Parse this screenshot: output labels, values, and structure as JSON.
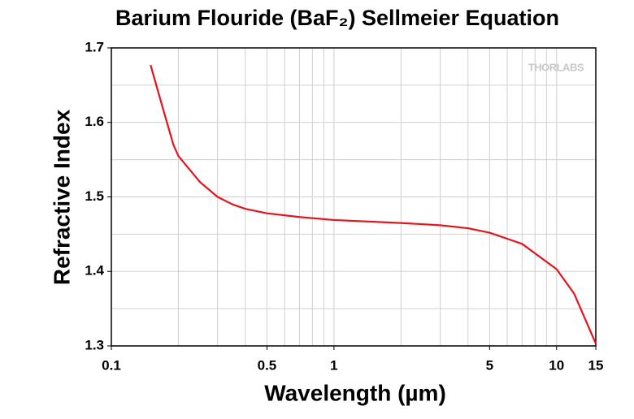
{
  "chart_data": {
    "type": "line",
    "title": "Barium Flouride (BaF₂) Sellmeier Equation",
    "x_label": "Wavelength (µm)",
    "y_label": "Refractive Index",
    "watermark": "THORLABS",
    "x": [
      0.15,
      0.17,
      0.19,
      0.2,
      0.25,
      0.3,
      0.35,
      0.4,
      0.5,
      0.7,
      1,
      2,
      3,
      4,
      5,
      7,
      10,
      12,
      15
    ],
    "series": [
      {
        "name": "BaF2",
        "color": "#e3141c",
        "values": [
          1.677,
          1.62,
          1.57,
          1.555,
          1.52,
          1.5,
          1.49,
          1.484,
          1.478,
          1.473,
          1.469,
          1.465,
          1.462,
          1.458,
          1.452,
          1.437,
          1.403,
          1.37,
          1.303
        ]
      }
    ],
    "xscale": "log",
    "xlim": [
      0.1,
      15
    ],
    "xticks": [
      0.1,
      0.5,
      1,
      5,
      10,
      15
    ],
    "xminor": [
      0.2,
      0.3,
      0.4,
      0.6,
      0.7,
      0.8,
      0.9,
      2,
      3,
      4,
      6,
      7,
      8,
      9
    ],
    "ylim": [
      1.3,
      1.7
    ],
    "yticks": [
      1.3,
      1.4,
      1.5,
      1.6,
      1.7
    ],
    "yminor": [
      1.35,
      1.45,
      1.55,
      1.65
    ],
    "grid": true
  }
}
